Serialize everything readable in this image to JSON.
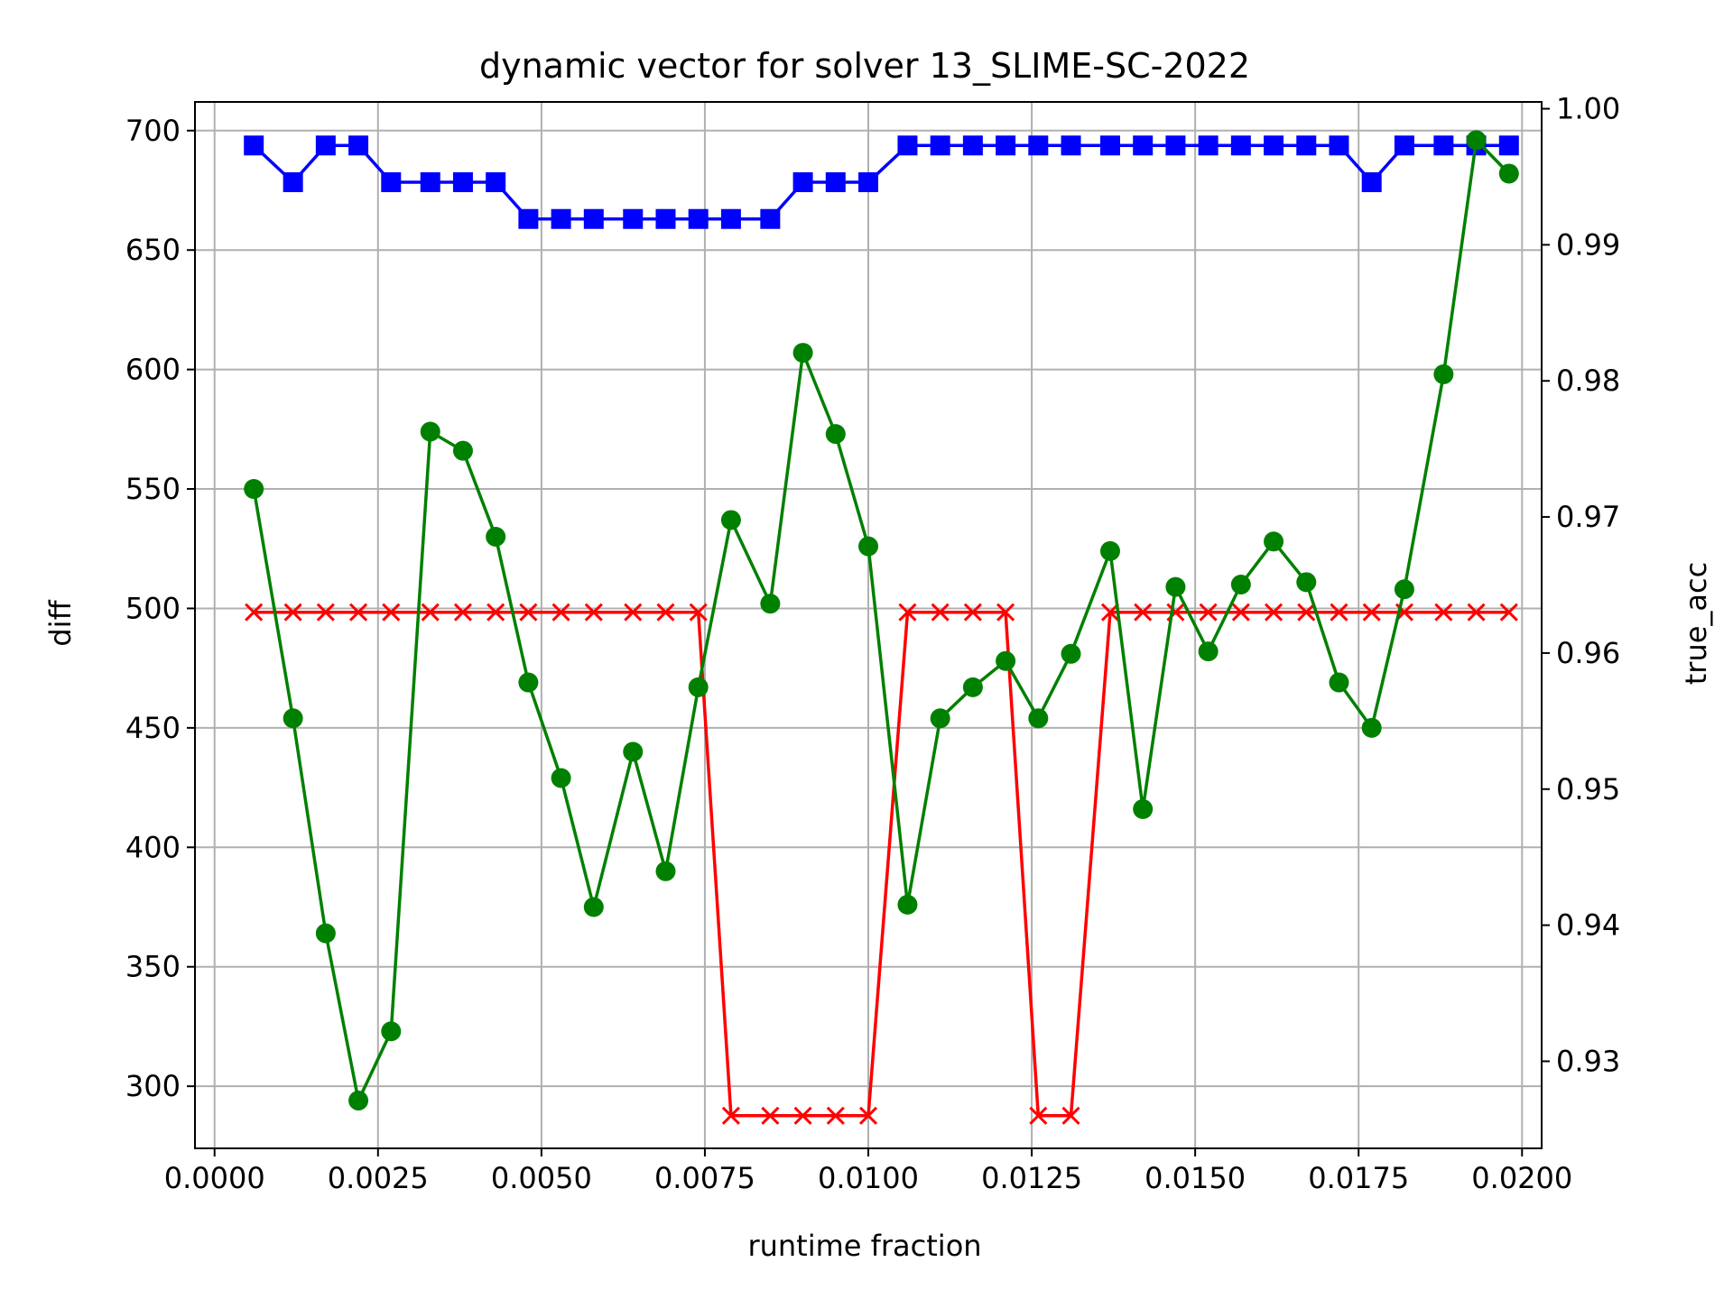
{
  "chart_data": {
    "type": "line",
    "title": "dynamic vector for solver 13_SLIME-SC-2022",
    "xlabel": "runtime fraction",
    "ylabel_left": "diff",
    "ylabel_right": "true_acc",
    "xlim": [
      -0.0003,
      0.0203
    ],
    "ylim_left": [
      274,
      712
    ],
    "ylim_right": [
      0.9236,
      1.0005
    ],
    "grid": true,
    "colors": {
      "diff": "#008000",
      "true_acc": "#ff0000",
      "blue": "#0000ff",
      "left_label": "#008000",
      "right_label": "#ff0000"
    },
    "x_ticks": [
      0.0,
      0.0025,
      0.005,
      0.0075,
      0.01,
      0.0125,
      0.015,
      0.0175,
      0.02
    ],
    "x_tick_labels": [
      "0.0000",
      "0.0025",
      "0.0050",
      "0.0075",
      "0.0100",
      "0.0125",
      "0.0150",
      "0.0175",
      "0.0200"
    ],
    "y_left_ticks": [
      300,
      350,
      400,
      450,
      500,
      550,
      600,
      650,
      700
    ],
    "y_left_tick_labels": [
      "300",
      "350",
      "400",
      "450",
      "500",
      "550",
      "600",
      "650",
      "700"
    ],
    "y_right_ticks": [
      0.93,
      0.94,
      0.95,
      0.96,
      0.97,
      0.98,
      0.99,
      1.0
    ],
    "y_right_tick_labels": [
      "0.93",
      "0.94",
      "0.95",
      "0.96",
      "0.97",
      "0.98",
      "0.99",
      "1.00"
    ],
    "x": [
      0.0006,
      0.0012,
      0.0017,
      0.0022,
      0.0027,
      0.0033,
      0.0038,
      0.0043,
      0.0048,
      0.0053,
      0.0058,
      0.0064,
      0.0069,
      0.0074,
      0.0079,
      0.0085,
      0.009,
      0.0095,
      0.01,
      0.0106,
      0.0111,
      0.0116,
      0.0121,
      0.0126,
      0.0131,
      0.0137,
      0.0142,
      0.0147,
      0.0152,
      0.0157,
      0.0162,
      0.0167,
      0.0172,
      0.0177,
      0.0182,
      0.0188,
      0.0193,
      0.0198
    ],
    "series": [
      {
        "axis": "left",
        "marker": "circle",
        "color": "#008000",
        "x": [
          0.0006,
          0.0012,
          0.0017,
          0.0022,
          0.0027,
          0.0033,
          0.0038,
          0.0043,
          0.0048,
          0.0053,
          0.0058,
          0.0064,
          0.0069,
          0.0074,
          0.0079,
          0.0085,
          0.009,
          0.0095,
          0.01,
          0.0106,
          0.0111,
          0.0116,
          0.0121,
          0.0126,
          0.0131,
          0.0137,
          0.0142,
          0.0147,
          0.0152,
          0.0157,
          0.0162,
          0.0167,
          0.0172,
          0.0177,
          0.0182,
          0.0188,
          0.0193,
          0.0198
        ],
        "values": [
          550,
          454,
          364,
          294,
          323,
          574,
          566,
          530,
          469,
          429,
          375,
          440,
          390,
          467,
          537,
          502,
          607,
          573,
          526,
          376,
          454,
          467,
          478,
          454,
          481,
          524,
          416,
          509,
          482,
          510,
          528,
          511,
          469,
          450,
          508,
          598,
          696,
          682
        ]
      },
      {
        "axis": "right",
        "marker": "x",
        "color": "#ff0000",
        "x": [
          0.0006,
          0.0012,
          0.0017,
          0.0022,
          0.0027,
          0.0033,
          0.0038,
          0.0043,
          0.0048,
          0.0053,
          0.0058,
          0.0064,
          0.0069,
          0.0074,
          0.0079,
          0.0085,
          0.009,
          0.0095,
          0.01,
          0.0106,
          0.0111,
          0.0116,
          0.0121,
          0.0126,
          0.0131,
          0.0137,
          0.0142,
          0.0147,
          0.0152,
          0.0157,
          0.0162,
          0.0167,
          0.0172,
          0.0177,
          0.0182,
          0.0188,
          0.0193,
          0.0198
        ],
        "values": [
          0.963,
          0.963,
          0.963,
          0.963,
          0.963,
          0.963,
          0.963,
          0.963,
          0.963,
          0.963,
          0.963,
          0.963,
          0.963,
          0.963,
          0.926,
          0.926,
          0.926,
          0.926,
          0.926,
          0.963,
          0.963,
          0.963,
          0.963,
          0.926,
          0.926,
          0.963,
          0.963,
          0.963,
          0.963,
          0.963,
          0.963,
          0.963,
          0.963,
          0.963,
          0.963,
          0.963,
          0.963,
          0.963
        ]
      },
      {
        "axis": "right",
        "marker": "square",
        "color": "#0000ff",
        "x": [
          0.0006,
          0.0012,
          0.0017,
          0.0022,
          0.0027,
          0.0033,
          0.0038,
          0.0043,
          0.0048,
          0.0053,
          0.0058,
          0.0064,
          0.0069,
          0.0074,
          0.0079,
          0.0085,
          0.009,
          0.0095,
          0.01,
          0.0106,
          0.0111,
          0.0116,
          0.0121,
          0.0126,
          0.0131,
          0.0137,
          0.0142,
          0.0147,
          0.0152,
          0.0157,
          0.0162,
          0.0167,
          0.0172,
          0.0177,
          0.0182,
          0.0188,
          0.0193,
          0.0198
        ],
        "values": [
          0.9973,
          0.9946,
          0.9973,
          0.9973,
          0.9946,
          0.9946,
          0.9946,
          0.9946,
          0.9919,
          0.9919,
          0.9919,
          0.9919,
          0.9919,
          0.9919,
          0.9919,
          0.9919,
          0.9946,
          0.9946,
          0.9946,
          0.9973,
          0.9973,
          0.9973,
          0.9973,
          0.9973,
          0.9973,
          0.9973,
          0.9973,
          0.9973,
          0.9973,
          0.9973,
          0.9973,
          0.9973,
          0.9973,
          0.9946,
          0.9973,
          0.9973,
          0.9973,
          0.9973
        ]
      }
    ]
  }
}
